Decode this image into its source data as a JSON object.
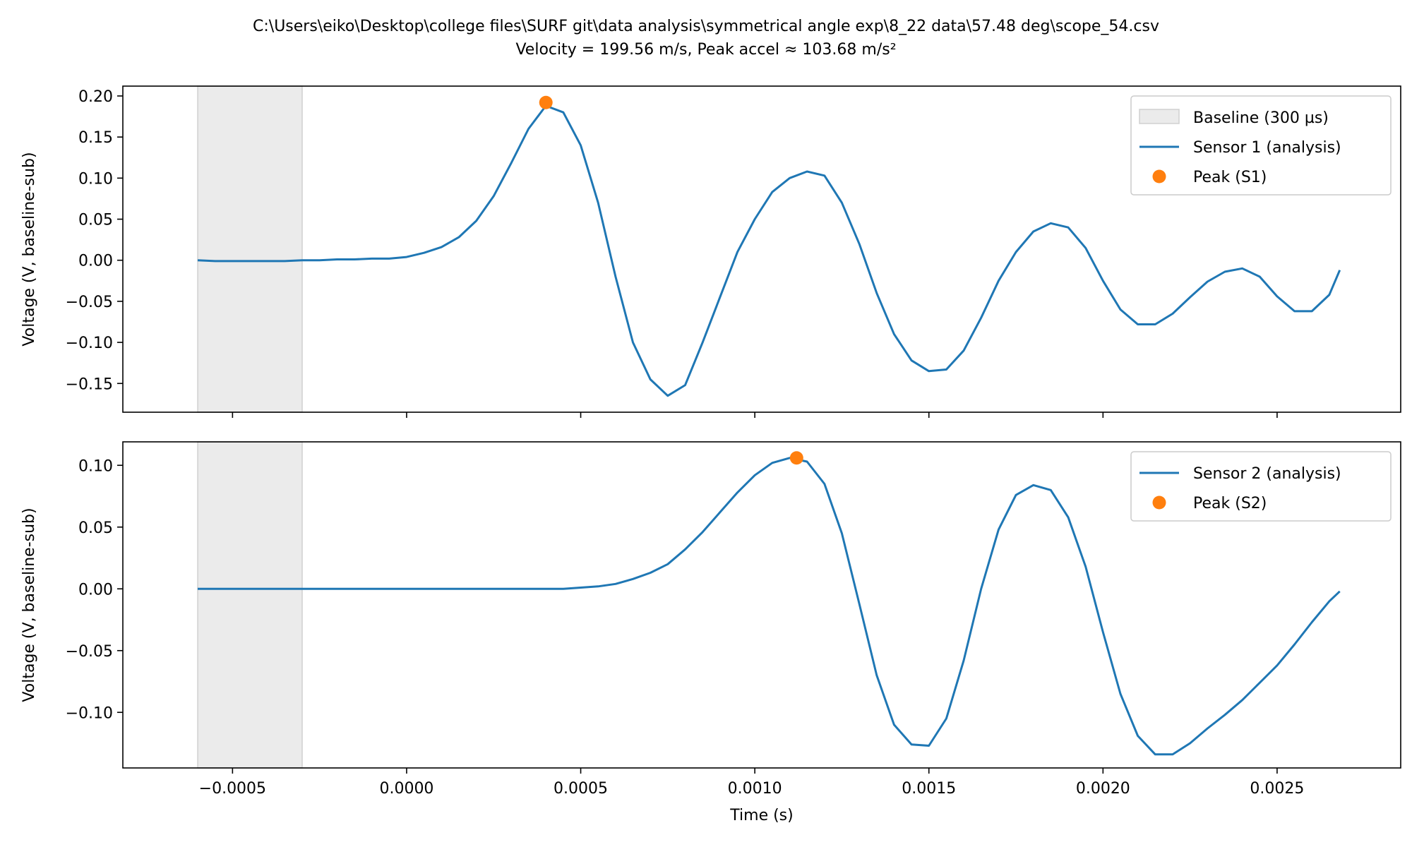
{
  "figure": {
    "title_line1": "C:\\Users\\eiko\\Desktop\\college files\\SURF git\\data analysis\\symmetrical angle exp\\8_22 data\\57.48 deg\\scope_54.csv",
    "title_line2": "Velocity = 199.56 m/s, Peak accel ≈ 103.68 m/s²"
  },
  "colors": {
    "series": "#1f77b4",
    "peak": "#ff7f0e",
    "baseline_fill": "#ebebeb",
    "baseline_edge": "#d0d0d0"
  },
  "chart_data": [
    {
      "type": "line",
      "title": "",
      "xlabel": "",
      "ylabel": "Voltage (V, baseline-sub)",
      "xlim": [
        -0.000815,
        0.002855
      ],
      "ylim": [
        -0.185,
        0.212
      ],
      "xticks": [
        -0.0005,
        0.0,
        0.0005,
        0.001,
        0.0015,
        0.002,
        0.0025
      ],
      "xtick_labels": [],
      "yticks": [
        0.2,
        0.15,
        0.1,
        0.05,
        0.0,
        -0.05,
        -0.1,
        -0.15
      ],
      "ytick_labels": [
        "0.20",
        "0.15",
        "0.10",
        "0.05",
        "0.00",
        "−0.05",
        "−0.10",
        "−0.15"
      ],
      "baseline_span": {
        "label": "Baseline (300 µs)",
        "x0": -0.0006,
        "x1": -0.0003
      },
      "series": [
        {
          "name": "Sensor 1 (analysis)",
          "x": [
            -0.0006,
            -0.00055,
            -0.0005,
            -0.00045,
            -0.0004,
            -0.00035,
            -0.0003,
            -0.00025,
            -0.0002,
            -0.00015,
            -0.0001,
            -5e-05,
            0.0,
            5e-05,
            0.0001,
            0.00015,
            0.0002,
            0.00025,
            0.0003,
            0.00035,
            0.0004,
            0.00045,
            0.0005,
            0.00055,
            0.0006,
            0.00065,
            0.0007,
            0.00075,
            0.0008,
            0.00085,
            0.0009,
            0.00095,
            0.001,
            0.00105,
            0.0011,
            0.00115,
            0.0012,
            0.00125,
            0.0013,
            0.00135,
            0.0014,
            0.00145,
            0.0015,
            0.00155,
            0.0016,
            0.00165,
            0.0017,
            0.00175,
            0.0018,
            0.00185,
            0.0019,
            0.00195,
            0.002,
            0.00205,
            0.0021,
            0.00215,
            0.0022,
            0.00225,
            0.0023,
            0.00235,
            0.0024,
            0.00245,
            0.0025,
            0.00255,
            0.0026,
            0.00265,
            0.00268
          ],
          "values": [
            0.0,
            -0.001,
            -0.001,
            -0.001,
            -0.001,
            -0.001,
            0.0,
            0.0,
            0.001,
            0.001,
            0.002,
            0.002,
            0.004,
            0.009,
            0.016,
            0.028,
            0.048,
            0.078,
            0.118,
            0.16,
            0.188,
            0.18,
            0.14,
            0.07,
            -0.02,
            -0.1,
            -0.145,
            -0.165,
            -0.152,
            -0.1,
            -0.045,
            0.01,
            0.05,
            0.083,
            0.1,
            0.108,
            0.103,
            0.07,
            0.02,
            -0.04,
            -0.09,
            -0.122,
            -0.135,
            -0.133,
            -0.11,
            -0.07,
            -0.025,
            0.01,
            0.035,
            0.045,
            0.04,
            0.015,
            -0.025,
            -0.06,
            -0.078,
            -0.078,
            -0.065,
            -0.045,
            -0.026,
            -0.014,
            -0.01,
            -0.02,
            -0.044,
            -0.062,
            -0.062,
            -0.042,
            -0.012
          ]
        }
      ],
      "peak": {
        "name": "Peak (S1)",
        "x": 0.0004,
        "y": 0.192
      },
      "legend": {
        "location": "upper right",
        "entries": [
          "Baseline (300 µs)",
          "Sensor 1 (analysis)",
          "Peak (S1)"
        ]
      }
    },
    {
      "type": "line",
      "title": "",
      "xlabel": "Time (s)",
      "ylabel": "Voltage (V, baseline-sub)",
      "xlim": [
        -0.000815,
        0.002855
      ],
      "ylim": [
        -0.145,
        0.119
      ],
      "xticks": [
        -0.0005,
        0.0,
        0.0005,
        0.001,
        0.0015,
        0.002,
        0.0025
      ],
      "xtick_labels": [
        "−0.0005",
        "0.0000",
        "0.0005",
        "0.0010",
        "0.0015",
        "0.0020",
        "0.0025"
      ],
      "yticks": [
        0.1,
        0.05,
        0.0,
        -0.05,
        -0.1
      ],
      "ytick_labels": [
        "0.10",
        "0.05",
        "0.00",
        "−0.05",
        "−0.10"
      ],
      "baseline_span": {
        "label": "",
        "x0": -0.0006,
        "x1": -0.0003
      },
      "series": [
        {
          "name": "Sensor 2 (analysis)",
          "x": [
            -0.0006,
            -0.00055,
            -0.0005,
            -0.00045,
            -0.0004,
            -0.00035,
            -0.0003,
            -0.00025,
            -0.0002,
            -0.00015,
            -0.0001,
            -5e-05,
            0.0,
            5e-05,
            0.0001,
            0.00015,
            0.0002,
            0.00025,
            0.0003,
            0.00035,
            0.0004,
            0.00045,
            0.0005,
            0.00055,
            0.0006,
            0.00065,
            0.0007,
            0.00075,
            0.0008,
            0.00085,
            0.0009,
            0.00095,
            0.001,
            0.00105,
            0.0011,
            0.00115,
            0.0012,
            0.00125,
            0.0013,
            0.00135,
            0.0014,
            0.00145,
            0.0015,
            0.00155,
            0.0016,
            0.00165,
            0.0017,
            0.00175,
            0.0018,
            0.00185,
            0.0019,
            0.00195,
            0.002,
            0.00205,
            0.0021,
            0.00215,
            0.0022,
            0.00225,
            0.0023,
            0.00235,
            0.0024,
            0.00245,
            0.0025,
            0.00255,
            0.0026,
            0.00265,
            0.00268
          ],
          "values": [
            0.0,
            0.0,
            0.0,
            0.0,
            0.0,
            0.0,
            0.0,
            0.0,
            0.0,
            0.0,
            0.0,
            0.0,
            0.0,
            0.0,
            0.0,
            0.0,
            0.0,
            0.0,
            0.0,
            0.0,
            0.0,
            0.0,
            0.001,
            0.002,
            0.004,
            0.008,
            0.013,
            0.02,
            0.032,
            0.046,
            0.062,
            0.078,
            0.092,
            0.102,
            0.106,
            0.103,
            0.085,
            0.045,
            -0.012,
            -0.07,
            -0.11,
            -0.126,
            -0.127,
            -0.105,
            -0.058,
            0.0,
            0.048,
            0.076,
            0.084,
            0.08,
            0.058,
            0.018,
            -0.035,
            -0.085,
            -0.119,
            -0.134,
            -0.134,
            -0.125,
            -0.113,
            -0.102,
            -0.09,
            -0.076,
            -0.062,
            -0.045,
            -0.027,
            -0.01,
            -0.002
          ]
        }
      ],
      "peak": {
        "name": "Peak (S2)",
        "x": 0.00112,
        "y": 0.106
      },
      "legend": {
        "location": "upper right",
        "entries": [
          "Sensor 2 (analysis)",
          "Peak (S2)"
        ]
      }
    }
  ]
}
